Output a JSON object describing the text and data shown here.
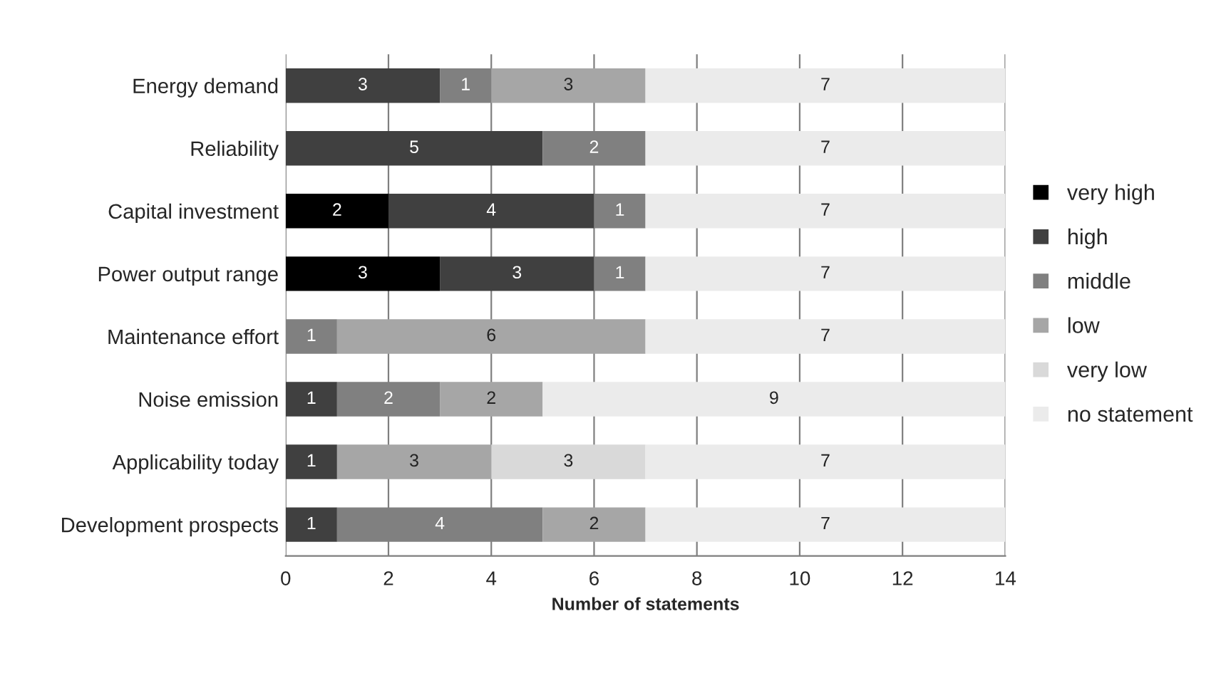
{
  "chart_data": {
    "type": "bar",
    "orientation": "horizontal",
    "stacked": true,
    "xlabel": "Number of statements",
    "categories": [
      "Energy demand",
      "Reliability",
      "Capital investment",
      "Power output range",
      "Maintenance effort",
      "Noise emission",
      "Applicability today",
      "Development prospects"
    ],
    "series": [
      {
        "name": "very high",
        "color": "#000000",
        "values": [
          null,
          null,
          2,
          3,
          null,
          null,
          null,
          null
        ]
      },
      {
        "name": "high",
        "color": "#404040",
        "values": [
          3,
          5,
          4,
          3,
          null,
          1,
          1,
          1
        ]
      },
      {
        "name": "middle",
        "color": "#808080",
        "values": [
          1,
          2,
          1,
          1,
          1,
          2,
          null,
          4
        ]
      },
      {
        "name": "low",
        "color": "#a6a6a6",
        "values": [
          3,
          null,
          null,
          null,
          6,
          2,
          3,
          2
        ]
      },
      {
        "name": "very low",
        "color": "#d9d9d9",
        "values": [
          null,
          null,
          null,
          null,
          null,
          null,
          3,
          null
        ]
      },
      {
        "name": "no statement",
        "color": "#ebebeb",
        "values": [
          7,
          7,
          7,
          7,
          7,
          9,
          7,
          7
        ]
      }
    ],
    "xlim": [
      0,
      14
    ],
    "xticks": [
      0,
      2,
      4,
      6,
      8,
      10,
      12,
      14
    ],
    "grid": "x",
    "legend": "right",
    "data_labels": true
  }
}
